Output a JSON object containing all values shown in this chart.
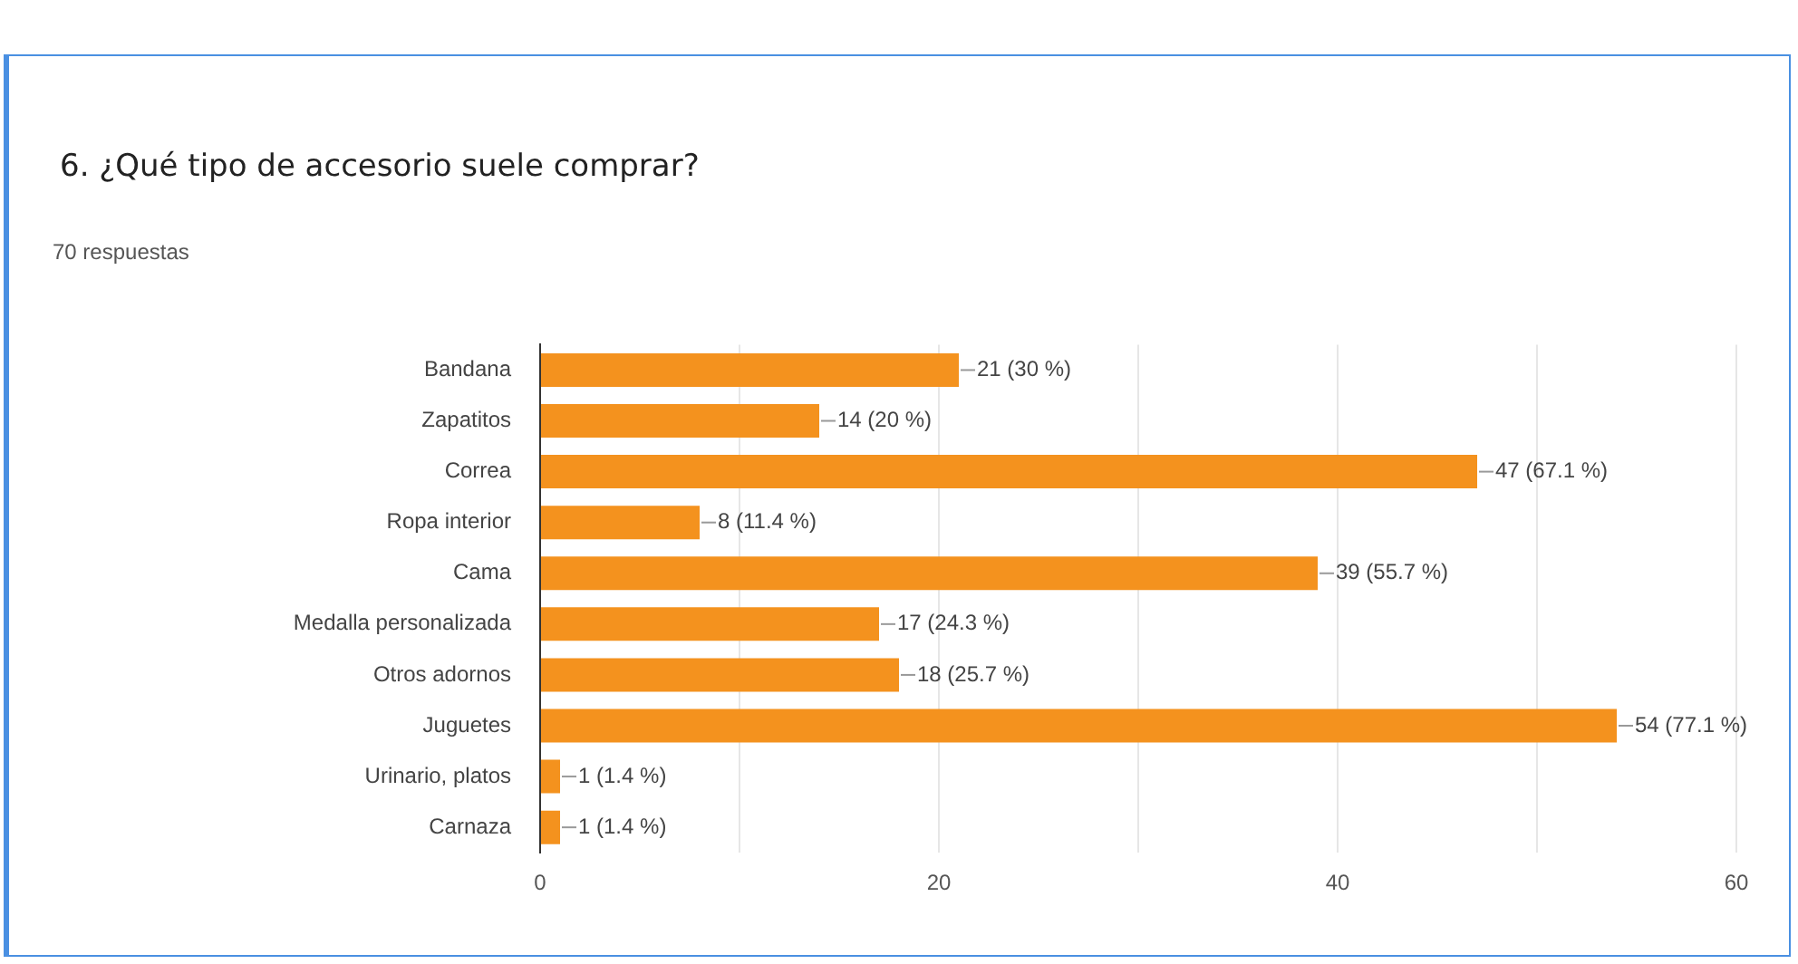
{
  "chart_data": {
    "type": "bar",
    "orientation": "horizontal",
    "title": "6. ¿Qué tipo de accesorio suele comprar?",
    "subtitle": "70 respuestas",
    "categories": [
      "Bandana",
      "Zapatitos",
      "Correa",
      "Ropa interior",
      "Cama",
      "Medalla personalizada",
      "Otros adornos",
      "Juguetes",
      "Urinario, platos",
      "Carnaza"
    ],
    "values": [
      21,
      14,
      47,
      8,
      39,
      17,
      18,
      54,
      1,
      1
    ],
    "value_labels": [
      "21 (30 %)",
      "14 (20 %)",
      "47 (67.1 %)",
      "8 (11.4 %)",
      "39 (55.7 %)",
      "17 (24.3 %)",
      "18 (25.7 %)",
      "54 (77.1 %)",
      "1 (1.4 %)",
      "1 (1.4 %)"
    ],
    "color": "#f4921e",
    "xlim": [
      0,
      60
    ],
    "xticks": [
      0,
      {
        "value": 10,
        "label": null
      },
      20,
      {
        "value": 30,
        "label": null
      },
      40,
      {
        "value": 50,
        "label": null
      },
      60
    ],
    "grid": true
  }
}
